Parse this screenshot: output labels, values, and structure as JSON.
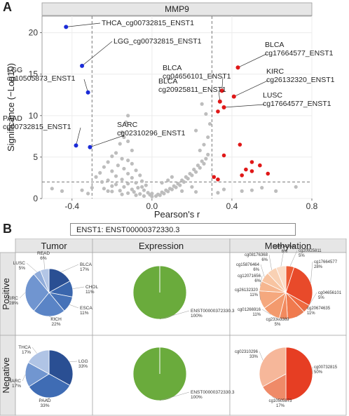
{
  "panel_a": {
    "letter": "A"
  },
  "panel_b": {
    "letter": "B"
  },
  "chart_data": [
    {
      "type": "scatter",
      "title": "MMP9",
      "xlabel": "Pearson's r",
      "ylabel": "Significance (−Log10)",
      "xlim": [
        -0.55,
        0.8
      ],
      "ylim": [
        0,
        22
      ],
      "xticks": [
        "-0.4",
        "0.0",
        "0.4",
        "0.8"
      ],
      "yticks": [
        "0",
        "5",
        "10",
        "15",
        "20"
      ],
      "thresholds": {
        "r": [
          -0.3,
          0.3
        ],
        "significance": 2
      },
      "grid": true,
      "colors": {
        "negative": "#1a2bd8",
        "positive": "#e01818",
        "ns": "#bdbdbd"
      },
      "labeled_points": [
        {
          "label": "THCA_cg00732815_ENST1",
          "x": -0.43,
          "y": 20.7,
          "group": "negative"
        },
        {
          "label": "LGG_cg00732815_ENST1",
          "x": -0.35,
          "y": 16.0,
          "group": "negative"
        },
        {
          "label": "LGG\ncg10505873_ENST1",
          "x": -0.32,
          "y": 12.8,
          "group": "negative"
        },
        {
          "label": "PAAD\ncg00732815_ENST1",
          "x": -0.38,
          "y": 6.4,
          "group": "negative"
        },
        {
          "label": "SARC\ncg02310296_ENST1",
          "x": -0.31,
          "y": 6.2,
          "group": "negative"
        },
        {
          "label": "BLCA\ncg17664577_ENST1",
          "x": 0.43,
          "y": 15.8,
          "group": "positive"
        },
        {
          "label": "BLCA\ncg04656101_ENST1",
          "x": 0.35,
          "y": 13.0,
          "group": "positive"
        },
        {
          "label": "KIRC\ncg26132320_ENST1",
          "x": 0.41,
          "y": 12.3,
          "group": "positive"
        },
        {
          "label": "BLCA\ncg20925811_ENST1",
          "x": 0.34,
          "y": 11.7,
          "group": "positive"
        },
        {
          "label": "LUSC\ncg17664577_ENST1",
          "x": 0.36,
          "y": 11.0,
          "group": "positive"
        }
      ],
      "other_significant": [
        {
          "x": 0.33,
          "y": 10.5
        },
        {
          "x": 0.44,
          "y": 6.5
        },
        {
          "x": 0.36,
          "y": 5.2
        },
        {
          "x": 0.5,
          "y": 4.4
        },
        {
          "x": 0.54,
          "y": 4.0
        },
        {
          "x": 0.47,
          "y": 3.5
        },
        {
          "x": 0.5,
          "y": 3.3
        },
        {
          "x": 0.58,
          "y": 3.0
        },
        {
          "x": 0.45,
          "y": 2.8
        },
        {
          "x": 0.31,
          "y": 2.6
        },
        {
          "x": 0.33,
          "y": 2.3
        }
      ],
      "nonsignificant": [
        [
          -0.12,
          10.0
        ],
        [
          -0.13,
          9.2
        ],
        [
          -0.15,
          8.0
        ],
        [
          -0.14,
          7.4
        ],
        [
          -0.12,
          6.9
        ],
        [
          -0.16,
          6.6
        ],
        [
          -0.1,
          5.8
        ],
        [
          -0.18,
          5.5
        ],
        [
          -0.2,
          5.1
        ],
        [
          -0.15,
          4.8
        ],
        [
          -0.12,
          4.6
        ],
        [
          -0.22,
          4.4
        ],
        [
          -0.1,
          4.2
        ],
        [
          -0.17,
          4.0
        ],
        [
          -0.24,
          3.8
        ],
        [
          -0.14,
          3.6
        ],
        [
          -0.08,
          3.4
        ],
        [
          -0.2,
          3.3
        ],
        [
          -0.26,
          3.1
        ],
        [
          -0.12,
          3.0
        ],
        [
          -0.06,
          2.8
        ],
        [
          -0.18,
          2.7
        ],
        [
          -0.28,
          2.6
        ],
        [
          -0.1,
          2.5
        ],
        [
          -0.15,
          2.3
        ],
        [
          -0.22,
          2.2
        ],
        [
          -0.05,
          2.1
        ],
        [
          -0.25,
          2.0
        ],
        [
          -0.08,
          1.9
        ],
        [
          -0.12,
          1.8
        ],
        [
          -0.18,
          1.7
        ],
        [
          -0.03,
          1.6
        ],
        [
          -0.2,
          1.5
        ],
        [
          -0.14,
          1.4
        ],
        [
          -0.07,
          1.3
        ],
        [
          -0.24,
          1.2
        ],
        [
          -0.1,
          1.1
        ],
        [
          -0.04,
          1.0
        ],
        [
          -0.16,
          0.95
        ],
        [
          -0.2,
          0.85
        ],
        [
          -0.09,
          0.8
        ],
        [
          -0.02,
          0.7
        ],
        [
          -0.12,
          0.65
        ],
        [
          -0.06,
          0.55
        ],
        [
          -0.15,
          0.5
        ],
        [
          -0.01,
          0.45
        ],
        [
          -0.08,
          0.4
        ],
        [
          -0.04,
          0.3
        ],
        [
          0.0,
          0.25
        ],
        [
          0.02,
          0.3
        ],
        [
          0.04,
          0.4
        ],
        [
          0.03,
          0.5
        ],
        [
          0.06,
          0.6
        ],
        [
          0.05,
          0.75
        ],
        [
          0.08,
          0.85
        ],
        [
          0.07,
          1.0
        ],
        [
          0.1,
          1.1
        ],
        [
          0.09,
          1.2
        ],
        [
          0.12,
          1.35
        ],
        [
          0.11,
          1.5
        ],
        [
          0.14,
          1.6
        ],
        [
          0.13,
          1.8
        ],
        [
          0.16,
          2.0
        ],
        [
          0.15,
          2.2
        ],
        [
          0.18,
          2.4
        ],
        [
          0.17,
          2.6
        ],
        [
          0.2,
          2.8
        ],
        [
          0.19,
          3.0
        ],
        [
          0.22,
          3.2
        ],
        [
          0.21,
          3.5
        ],
        [
          0.24,
          3.7
        ],
        [
          0.23,
          4.0
        ],
        [
          0.26,
          4.2
        ],
        [
          0.25,
          4.5
        ],
        [
          0.27,
          4.8
        ],
        [
          0.28,
          5.3
        ],
        [
          0.24,
          5.8
        ],
        [
          0.26,
          6.5
        ],
        [
          0.28,
          7.4
        ],
        [
          0.22,
          8.2
        ],
        [
          0.29,
          9.0
        ],
        [
          0.27,
          10.2
        ],
        [
          0.25,
          11.4
        ],
        [
          0.1,
          2.6
        ],
        [
          0.05,
          1.9
        ],
        [
          0.2,
          1.4
        ],
        [
          0.15,
          0.9
        ],
        [
          -0.3,
          1.3
        ],
        [
          -0.35,
          1.0
        ],
        [
          -0.45,
          0.9
        ],
        [
          -0.5,
          1.2
        ],
        [
          0.36,
          1.1
        ],
        [
          0.45,
          0.9
        ],
        [
          0.5,
          1.0
        ],
        [
          0.55,
          1.3
        ],
        [
          0.62,
          0.9
        ],
        [
          0.72,
          1.4
        ],
        [
          -0.32,
          0.6
        ],
        [
          0.33,
          0.7
        ],
        [
          -0.22,
          0.9
        ],
        [
          0.22,
          0.8
        ],
        [
          0.0,
          0.6
        ],
        [
          -0.05,
          1.4
        ],
        [
          0.08,
          2.2
        ]
      ]
    },
    {
      "type": "pie",
      "title": "Tumor",
      "row": "Positive",
      "slices": [
        {
          "label": "BLCA",
          "pct": "17%",
          "value": 17,
          "color": "#2a4f93"
        },
        {
          "label": "CHOL",
          "pct": "11%",
          "value": 11,
          "color": "#3a66ad"
        },
        {
          "label": "ESCA",
          "pct": "11%",
          "value": 11,
          "color": "#4672b8"
        },
        {
          "label": "KICH",
          "pct": "22%",
          "value": 22,
          "color": "#5a84c6"
        },
        {
          "label": "KIRC",
          "pct": "28%",
          "value": 28,
          "color": "#7095d0"
        },
        {
          "label": "LUSC",
          "pct": "5%",
          "value": 5,
          "color": "#90acda"
        },
        {
          "label": "READ",
          "pct": "6%",
          "value": 6,
          "color": "#b3c6e6"
        }
      ]
    },
    {
      "type": "pie",
      "title": "Expression",
      "row": "Positive",
      "slices": [
        {
          "label": "ENST00000372330.3",
          "pct": "100%",
          "value": 100,
          "color": "#6aab3c"
        }
      ]
    },
    {
      "type": "pie",
      "title": "Methylation",
      "row": "Positive",
      "slices": [
        {
          "label": "cg20925811",
          "pct": "5%",
          "value": 5,
          "color": "#ec5a33"
        },
        {
          "label": "cg17664577",
          "pct": "28%",
          "value": 28,
          "color": "#e84a2a"
        },
        {
          "label": "cg04656101",
          "pct": "5%",
          "value": 5,
          "color": "#ee6a40"
        },
        {
          "label": "cg20674635",
          "pct": "11%",
          "value": 11,
          "color": "#f07a4e"
        },
        {
          "label": "cg23303369",
          "pct": "5%",
          "value": 5,
          "color": "#f28a5e"
        },
        {
          "label": "cg01266916",
          "pct": "11%",
          "value": 11,
          "color": "#f39a6d"
        },
        {
          "label": "cg26132320",
          "pct": "11%",
          "value": 11,
          "color": "#f5a87e"
        },
        {
          "label": "cg12071656",
          "pct": "6%",
          "value": 6,
          "color": "#f6b68f"
        },
        {
          "label": "cg15876464",
          "pct": "6%",
          "value": 6,
          "color": "#f8c4a1"
        },
        {
          "label": "cg08176368",
          "pct": "6%",
          "value": 6,
          "color": "#f9d1b4"
        },
        {
          "label": "cg09149648",
          "pct": "6%",
          "value": 6,
          "color": "#fbdcc6"
        }
      ]
    },
    {
      "type": "pie",
      "title": "Tumor",
      "row": "Negative",
      "slices": [
        {
          "label": "LGG",
          "pct": "33%",
          "value": 33,
          "color": "#2a4f93"
        },
        {
          "label": "PAAD",
          "pct": "33%",
          "value": 33,
          "color": "#3f6cb4"
        },
        {
          "label": "SARC",
          "pct": "17%",
          "value": 17,
          "color": "#7196d0"
        },
        {
          "label": "THCA",
          "pct": "17%",
          "value": 17,
          "color": "#b0c4e5"
        }
      ]
    },
    {
      "type": "pie",
      "title": "Expression",
      "row": "Negative",
      "slices": [
        {
          "label": "ENST00000372330.3",
          "pct": "100%",
          "value": 100,
          "color": "#6aab3c"
        }
      ]
    },
    {
      "type": "pie",
      "title": "Methylation",
      "row": "Negative",
      "slices": [
        {
          "label": "cg00732815",
          "pct": "50%",
          "value": 50,
          "color": "#e63e23"
        },
        {
          "label": "cg10505873",
          "pct": "17%",
          "value": 17,
          "color": "#ef8a68"
        },
        {
          "label": "cg02310296",
          "pct": "33%",
          "value": 33,
          "color": "#f6b79a"
        }
      ]
    }
  ],
  "enst_legend": "ENST1: ENST00000372330.3",
  "grid_headers": {
    "tumor": "Tumor",
    "expression": "Expression",
    "methylation": "Methylation"
  },
  "row_labels": {
    "positive": "Positive",
    "negative": "Negative"
  }
}
